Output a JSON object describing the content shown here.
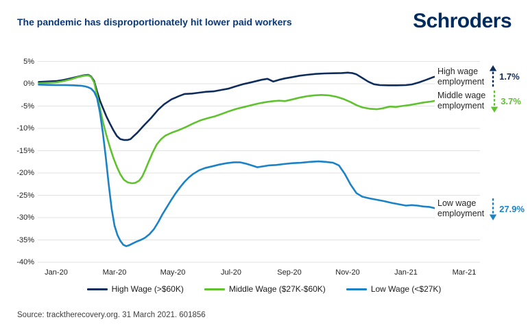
{
  "header": {
    "title": "The pandemic has disproportionately hit lower paid workers",
    "brand": "Schroders"
  },
  "chart_data": {
    "type": "line",
    "title": "The pandemic has disproportionately hit lower paid workers",
    "x_unit": "months since Jan-2020 tick",
    "x_ticks": [
      {
        "label": "Jan-20",
        "month": 0
      },
      {
        "label": "Mar-20",
        "month": 2
      },
      {
        "label": "May-20",
        "month": 4
      },
      {
        "label": "Jul-20",
        "month": 6
      },
      {
        "label": "Sep-20",
        "month": 8
      },
      {
        "label": "Nov-20",
        "month": 10
      },
      {
        "label": "Jan-21",
        "month": 12
      },
      {
        "label": "Mar-21",
        "month": 14
      }
    ],
    "y_ticks": [
      5,
      0,
      -5,
      -10,
      -15,
      -20,
      -25,
      -30,
      -35,
      -40
    ],
    "y_suffix": "%",
    "ylim": [
      -40,
      5
    ],
    "xlim_months": [
      -0.65,
      14.8
    ],
    "grid": "horizontal-only",
    "legend_position": "bottom",
    "grid_color": "#e2e2e2",
    "series": [
      {
        "name": "High Wage (>$60K)",
        "color": "#0f2d5c",
        "points": [
          [
            -0.6,
            0.4
          ],
          [
            0,
            0.6
          ],
          [
            0.25,
            0.85
          ],
          [
            0.5,
            1.2
          ],
          [
            0.75,
            1.6
          ],
          [
            0.95,
            1.9
          ],
          [
            1.1,
            2.0
          ],
          [
            1.2,
            1.6
          ],
          [
            1.3,
            0.6
          ],
          [
            1.4,
            -1.7
          ],
          [
            1.5,
            -3.8
          ],
          [
            1.6,
            -5.4
          ],
          [
            1.72,
            -7.3
          ],
          [
            1.84,
            -8.9
          ],
          [
            1.96,
            -10.4
          ],
          [
            2.08,
            -11.7
          ],
          [
            2.2,
            -12.4
          ],
          [
            2.32,
            -12.6
          ],
          [
            2.45,
            -12.6
          ],
          [
            2.55,
            -12.4
          ],
          [
            2.66,
            -11.7
          ],
          [
            2.78,
            -11.0
          ],
          [
            3.0,
            -9.4
          ],
          [
            3.25,
            -7.7
          ],
          [
            3.5,
            -5.8
          ],
          [
            3.7,
            -4.6
          ],
          [
            3.95,
            -3.5
          ],
          [
            4.2,
            -2.8
          ],
          [
            4.4,
            -2.3
          ],
          [
            4.66,
            -2.2
          ],
          [
            4.9,
            -2.0
          ],
          [
            5.15,
            -1.8
          ],
          [
            5.4,
            -1.7
          ],
          [
            5.65,
            -1.4
          ],
          [
            5.9,
            -1.1
          ],
          [
            6.15,
            -0.6
          ],
          [
            6.4,
            -0.1
          ],
          [
            6.55,
            0.1
          ],
          [
            6.8,
            0.5
          ],
          [
            7.05,
            0.9
          ],
          [
            7.25,
            1.1
          ],
          [
            7.45,
            0.5
          ],
          [
            7.65,
            0.9
          ],
          [
            7.85,
            1.2
          ],
          [
            8.1,
            1.5
          ],
          [
            8.35,
            1.8
          ],
          [
            8.6,
            2.0
          ],
          [
            8.9,
            2.2
          ],
          [
            9.2,
            2.3
          ],
          [
            9.5,
            2.35
          ],
          [
            9.8,
            2.4
          ],
          [
            10.0,
            2.5
          ],
          [
            10.15,
            2.4
          ],
          [
            10.3,
            2.1
          ],
          [
            10.5,
            1.3
          ],
          [
            10.7,
            0.5
          ],
          [
            10.9,
            -0.1
          ],
          [
            11.1,
            -0.3
          ],
          [
            11.4,
            -0.35
          ],
          [
            11.7,
            -0.35
          ],
          [
            12.0,
            -0.3
          ],
          [
            12.2,
            -0.15
          ],
          [
            12.45,
            0.3
          ],
          [
            12.7,
            0.9
          ],
          [
            12.9,
            1.4
          ],
          [
            13.05,
            1.7
          ]
        ]
      },
      {
        "name": "Middle Wage ($27K-$60K)",
        "color": "#5fc22e",
        "points": [
          [
            -0.6,
            0.1
          ],
          [
            0,
            0.3
          ],
          [
            0.25,
            0.6
          ],
          [
            0.5,
            1.0
          ],
          [
            0.75,
            1.5
          ],
          [
            0.95,
            1.8
          ],
          [
            1.1,
            1.9
          ],
          [
            1.2,
            1.5
          ],
          [
            1.3,
            0.3
          ],
          [
            1.4,
            -2.5
          ],
          [
            1.5,
            -5.5
          ],
          [
            1.6,
            -8.5
          ],
          [
            1.72,
            -11.5
          ],
          [
            1.84,
            -14.2
          ],
          [
            1.96,
            -16.6
          ],
          [
            2.08,
            -18.6
          ],
          [
            2.2,
            -20.3
          ],
          [
            2.32,
            -21.5
          ],
          [
            2.45,
            -22.1
          ],
          [
            2.6,
            -22.3
          ],
          [
            2.72,
            -22.2
          ],
          [
            2.85,
            -21.7
          ],
          [
            2.95,
            -20.8
          ],
          [
            3.05,
            -19.4
          ],
          [
            3.15,
            -17.8
          ],
          [
            3.3,
            -15.5
          ],
          [
            3.45,
            -13.6
          ],
          [
            3.6,
            -12.4
          ],
          [
            3.75,
            -11.6
          ],
          [
            3.95,
            -11.0
          ],
          [
            4.2,
            -10.4
          ],
          [
            4.45,
            -9.7
          ],
          [
            4.7,
            -8.9
          ],
          [
            4.95,
            -8.2
          ],
          [
            5.2,
            -7.7
          ],
          [
            5.45,
            -7.3
          ],
          [
            5.7,
            -6.7
          ],
          [
            5.95,
            -6.1
          ],
          [
            6.2,
            -5.6
          ],
          [
            6.45,
            -5.2
          ],
          [
            6.7,
            -4.8
          ],
          [
            6.95,
            -4.4
          ],
          [
            7.2,
            -4.1
          ],
          [
            7.45,
            -3.9
          ],
          [
            7.65,
            -3.8
          ],
          [
            7.85,
            -3.9
          ],
          [
            8.1,
            -3.5
          ],
          [
            8.35,
            -3.1
          ],
          [
            8.6,
            -2.8
          ],
          [
            8.85,
            -2.6
          ],
          [
            9.1,
            -2.5
          ],
          [
            9.35,
            -2.6
          ],
          [
            9.6,
            -2.9
          ],
          [
            9.85,
            -3.4
          ],
          [
            10.1,
            -4.1
          ],
          [
            10.3,
            -4.8
          ],
          [
            10.5,
            -5.3
          ],
          [
            10.75,
            -5.6
          ],
          [
            11.0,
            -5.7
          ],
          [
            11.2,
            -5.5
          ],
          [
            11.45,
            -5.1
          ],
          [
            11.65,
            -5.2
          ],
          [
            11.85,
            -5.0
          ],
          [
            12.1,
            -4.8
          ],
          [
            12.35,
            -4.5
          ],
          [
            12.6,
            -4.2
          ],
          [
            12.85,
            -4.0
          ],
          [
            13.1,
            -3.7
          ]
        ]
      },
      {
        "name": "Low Wage (<$27K)",
        "color": "#1b82c6",
        "points": [
          [
            -0.6,
            -0.2
          ],
          [
            0,
            -0.3
          ],
          [
            0.3,
            -0.3
          ],
          [
            0.6,
            -0.35
          ],
          [
            0.85,
            -0.45
          ],
          [
            1.0,
            -0.6
          ],
          [
            1.1,
            -0.8
          ],
          [
            1.2,
            -1.1
          ],
          [
            1.3,
            -1.8
          ],
          [
            1.4,
            -3.2
          ],
          [
            1.5,
            -6.5
          ],
          [
            1.6,
            -11.0
          ],
          [
            1.7,
            -16.5
          ],
          [
            1.8,
            -22.5
          ],
          [
            1.9,
            -28.0
          ],
          [
            2.0,
            -31.8
          ],
          [
            2.1,
            -33.9
          ],
          [
            2.2,
            -35.2
          ],
          [
            2.3,
            -36.1
          ],
          [
            2.4,
            -36.4
          ],
          [
            2.5,
            -36.2
          ],
          [
            2.62,
            -35.8
          ],
          [
            2.75,
            -35.4
          ],
          [
            2.9,
            -35.0
          ],
          [
            3.05,
            -34.5
          ],
          [
            3.2,
            -33.7
          ],
          [
            3.35,
            -32.6
          ],
          [
            3.5,
            -31.0
          ],
          [
            3.65,
            -29.2
          ],
          [
            3.8,
            -27.6
          ],
          [
            3.95,
            -26.0
          ],
          [
            4.1,
            -24.5
          ],
          [
            4.25,
            -23.2
          ],
          [
            4.4,
            -22.0
          ],
          [
            4.55,
            -21.0
          ],
          [
            4.7,
            -20.2
          ],
          [
            4.9,
            -19.4
          ],
          [
            5.1,
            -18.9
          ],
          [
            5.35,
            -18.5
          ],
          [
            5.6,
            -18.1
          ],
          [
            5.85,
            -17.8
          ],
          [
            6.1,
            -17.6
          ],
          [
            6.3,
            -17.6
          ],
          [
            6.5,
            -17.9
          ],
          [
            6.7,
            -18.3
          ],
          [
            6.9,
            -18.7
          ],
          [
            7.1,
            -18.5
          ],
          [
            7.3,
            -18.3
          ],
          [
            7.55,
            -18.2
          ],
          [
            7.8,
            -18.0
          ],
          [
            8.1,
            -17.8
          ],
          [
            8.4,
            -17.7
          ],
          [
            8.7,
            -17.5
          ],
          [
            9.0,
            -17.4
          ],
          [
            9.25,
            -17.5
          ],
          [
            9.5,
            -17.7
          ],
          [
            9.7,
            -18.3
          ],
          [
            9.9,
            -20.2
          ],
          [
            10.1,
            -22.6
          ],
          [
            10.3,
            -24.5
          ],
          [
            10.5,
            -25.3
          ],
          [
            10.75,
            -25.7
          ],
          [
            11.0,
            -26.0
          ],
          [
            11.25,
            -26.3
          ],
          [
            11.5,
            -26.7
          ],
          [
            11.75,
            -27.0
          ],
          [
            12.0,
            -27.3
          ],
          [
            12.2,
            -27.2
          ],
          [
            12.4,
            -27.3
          ],
          [
            12.6,
            -27.5
          ],
          [
            12.8,
            -27.6
          ],
          [
            13.0,
            -27.9
          ]
        ]
      }
    ],
    "annotations": [
      {
        "lines": [
          "High wage",
          "employment"
        ],
        "value": "1.7%",
        "direction": "up",
        "color": "#0f2d5c",
        "series": "High Wage (>$60K)"
      },
      {
        "lines": [
          "Middle wage",
          "employment"
        ],
        "value": "3.7%",
        "direction": "down",
        "color": "#5fc22e",
        "series": "Middle Wage ($27K-$60K)"
      },
      {
        "lines": [
          "Low wage",
          "employment"
        ],
        "value": "27.9%",
        "direction": "down",
        "color": "#1b82c6",
        "series": "Low Wage (<$27K)"
      }
    ]
  },
  "legend": {
    "items": [
      {
        "label": "High Wage (>$60K)",
        "color": "#0f2d5c"
      },
      {
        "label": "Middle Wage ($27K-$60K)",
        "color": "#5fc22e"
      },
      {
        "label": "Low Wage (<$27K)",
        "color": "#1b82c6"
      }
    ]
  },
  "footer": {
    "source": "Source: tracktherecovery.org. 31 March 2021. 601856"
  }
}
